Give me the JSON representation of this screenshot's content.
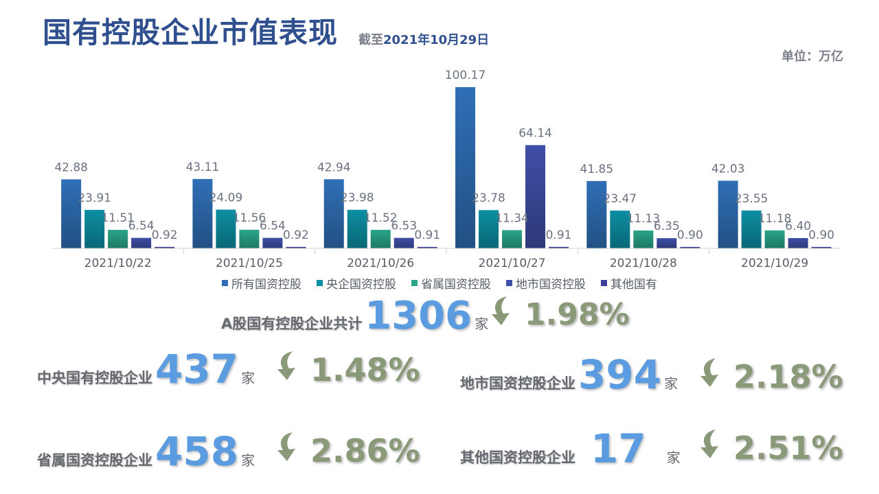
{
  "header": {
    "title": "国有控股企业市值表现",
    "asof_prefix": "截至",
    "asof_date": "2021年10月29日",
    "unit": "单位：万亿"
  },
  "colors": {
    "series": [
      "#2f6fb6",
      "#0d8fa3",
      "#2aa58a",
      "#3f4fa6",
      "#3b3f99"
    ],
    "number": "#5b9be0",
    "change": "#8a9a78"
  },
  "chart_data": {
    "type": "bar",
    "categories": [
      "2021/10/22",
      "2021/10/25",
      "2021/10/26",
      "2021/10/27",
      "2021/10/28",
      "2021/10/29"
    ],
    "series": [
      {
        "name": "所有国资控股",
        "values": [
          42.88,
          43.11,
          42.94,
          100.17,
          41.85,
          42.03
        ]
      },
      {
        "name": "央企国资控股",
        "values": [
          23.91,
          24.09,
          23.98,
          23.78,
          23.47,
          23.55
        ]
      },
      {
        "name": "省属国资控股",
        "values": [
          11.51,
          11.56,
          11.52,
          11.34,
          11.13,
          11.18
        ]
      },
      {
        "name": "地市国资控股",
        "values": [
          6.54,
          6.54,
          6.53,
          64.14,
          6.35,
          6.4
        ]
      },
      {
        "name": "其他国有",
        "values": [
          0.92,
          0.92,
          0.91,
          0.91,
          0.9,
          0.9
        ]
      }
    ],
    "value_labels": [
      [
        "42.88",
        "23.91",
        "11.51",
        "6.54",
        "0.92"
      ],
      [
        "43.11",
        "24.09",
        "11.56",
        "6.54",
        "0.92"
      ],
      [
        "42.94",
        "23.98",
        "11.52",
        "6.53",
        "0.91"
      ],
      [
        "100.17",
        "23.78",
        "11.34",
        "64.14",
        "0.91"
      ],
      [
        "41.85",
        "23.47",
        "11.13",
        "6.35",
        "0.90"
      ],
      [
        "42.03",
        "23.55",
        "11.18",
        "6.40",
        "0.90"
      ]
    ],
    "ylim": [
      0,
      100.17
    ],
    "grid": false,
    "legend_position": "bottom"
  },
  "summary": {
    "total": {
      "label": "A股国有控股企业共计",
      "count": "1306",
      "unit": "家",
      "change": "1.98%",
      "direction": "down"
    },
    "central": {
      "label": "中央国有控股企业",
      "count": "437",
      "unit": "家",
      "change": "1.48%",
      "direction": "down"
    },
    "municipal": {
      "label": "地市国资控股企业",
      "count": "394",
      "unit": "家",
      "change": "2.18%",
      "direction": "down"
    },
    "provincial": {
      "label": "省属国资控股企业",
      "count": "458",
      "unit": "家",
      "change": "2.86%",
      "direction": "down"
    },
    "other": {
      "label": "其他国资控股企业",
      "count": "17",
      "unit": "家",
      "change": "2.51%",
      "direction": "down"
    }
  },
  "icons": {
    "change": "curved-down-arrow-icon"
  }
}
